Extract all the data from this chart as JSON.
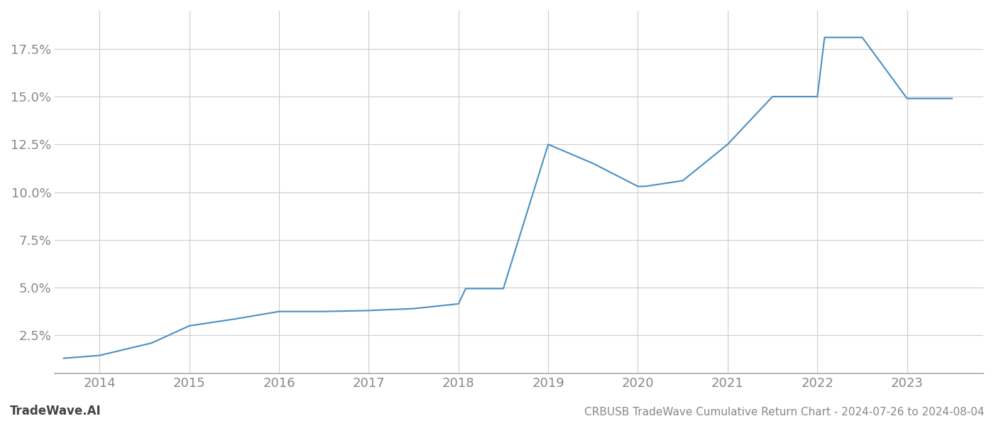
{
  "x_values": [
    2013.6,
    2014.0,
    2014.58,
    2015.0,
    2015.5,
    2016.0,
    2016.5,
    2017.0,
    2017.5,
    2018.0,
    2018.08,
    2018.5,
    2019.0,
    2019.5,
    2020.0,
    2020.08,
    2020.5,
    2021.0,
    2021.5,
    2022.0,
    2022.08,
    2022.5,
    2023.0,
    2023.5
  ],
  "y_values": [
    1.3,
    1.45,
    2.1,
    3.0,
    3.35,
    3.75,
    3.75,
    3.8,
    3.9,
    4.15,
    4.95,
    4.95,
    12.5,
    11.5,
    10.3,
    10.3,
    10.6,
    12.5,
    15.0,
    15.0,
    18.1,
    18.1,
    14.9,
    14.9
  ],
  "line_color": "#4a90c4",
  "line_width": 1.5,
  "background_color": "#ffffff",
  "grid_color": "#cccccc",
  "title": "CRBUSB TradeWave Cumulative Return Chart - 2024-07-26 to 2024-08-04",
  "watermark": "TradeWave.AI",
  "xlim": [
    2013.5,
    2023.85
  ],
  "ylim": [
    0.5,
    19.5
  ],
  "yticks": [
    2.5,
    5.0,
    7.5,
    10.0,
    12.5,
    15.0,
    17.5
  ],
  "xticks": [
    2014,
    2015,
    2016,
    2017,
    2018,
    2019,
    2020,
    2021,
    2022,
    2023
  ],
  "tick_label_color": "#888888",
  "title_color": "#888888",
  "watermark_color": "#444444",
  "spine_color": "#aaaaaa",
  "title_fontsize": 11,
  "tick_fontsize": 13,
  "watermark_fontsize": 12
}
